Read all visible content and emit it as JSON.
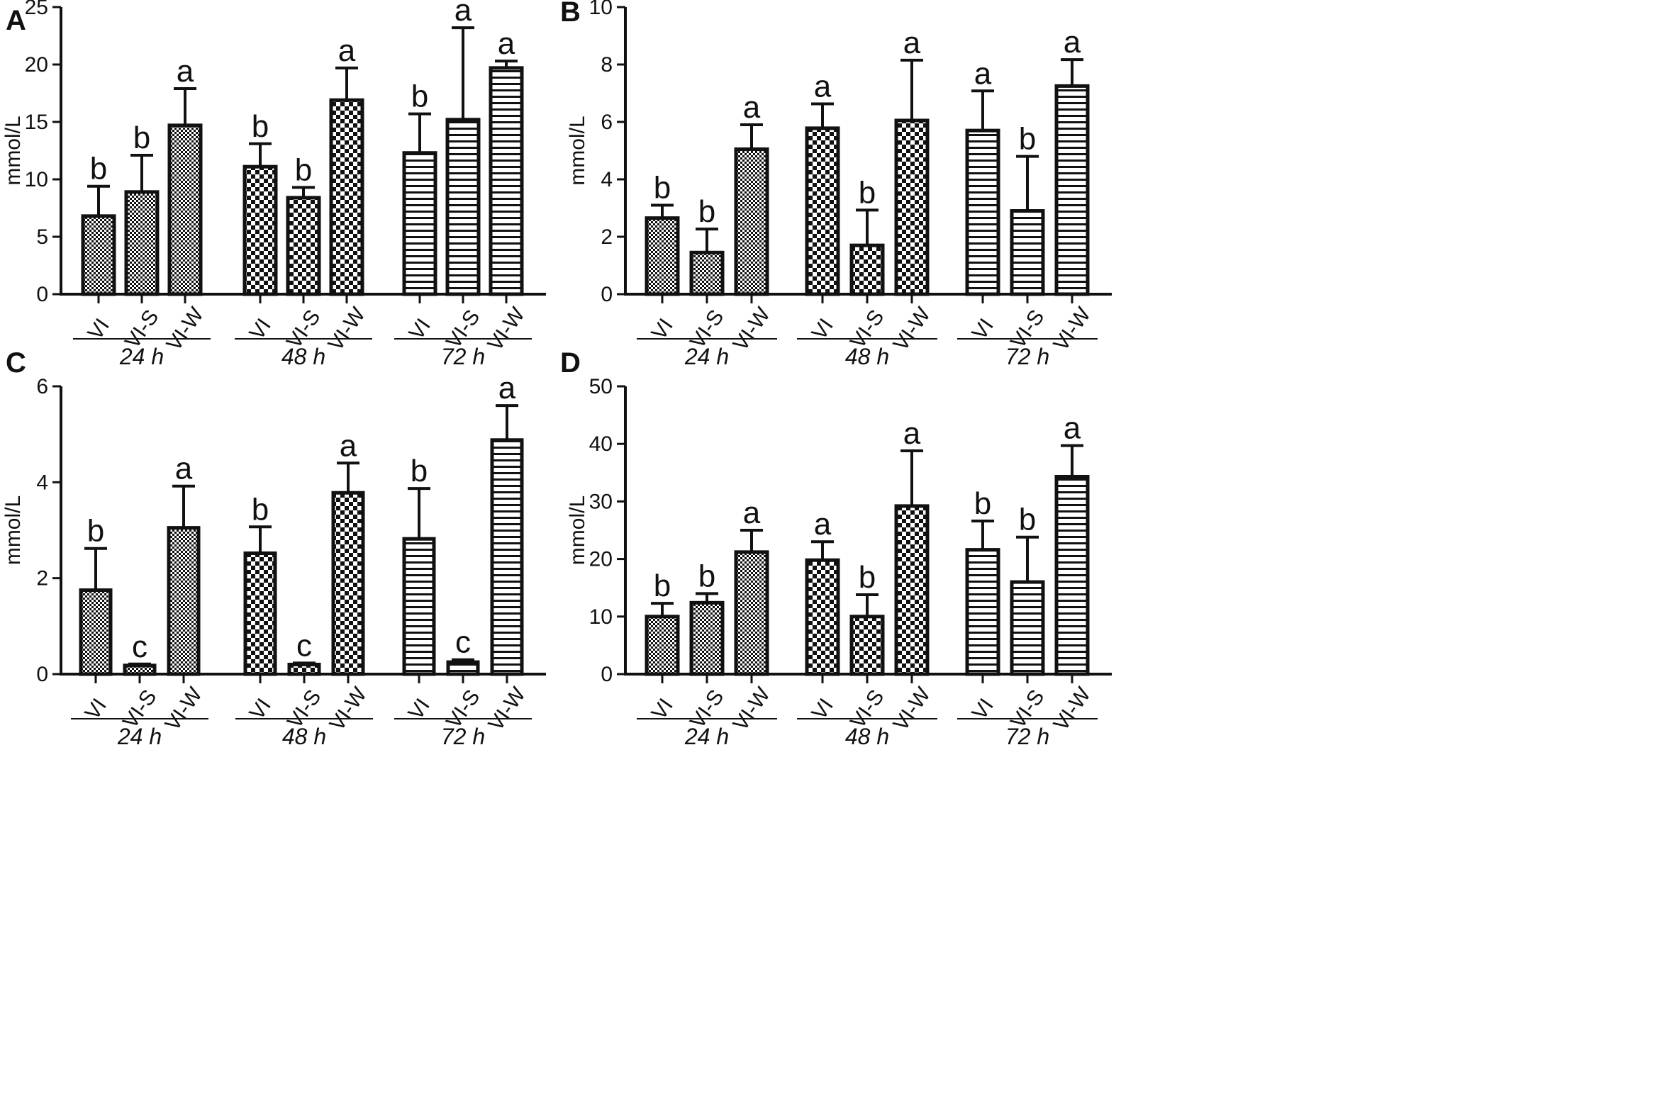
{
  "colors": {
    "ink": "#111111",
    "background": "#ffffff"
  },
  "chart_data": [
    {
      "panel": "A",
      "type": "bar",
      "ylabel": "mmol/L",
      "ylim": [
        0,
        25
      ],
      "yticks": [
        0,
        5,
        10,
        15,
        20,
        25
      ],
      "groups": [
        {
          "label": "24 h",
          "pattern": "dots",
          "bars": [
            {
              "category": "VI",
              "value": 6.8,
              "error": 2.6,
              "sig": "b"
            },
            {
              "category": "VI-S",
              "value": 8.9,
              "error": 3.2,
              "sig": "b"
            },
            {
              "category": "VI-W",
              "value": 14.7,
              "error": 3.2,
              "sig": "a"
            }
          ]
        },
        {
          "label": "48 h",
          "pattern": "checker",
          "bars": [
            {
              "category": "VI",
              "value": 11.1,
              "error": 2.0,
              "sig": "b"
            },
            {
              "category": "VI-S",
              "value": 8.4,
              "error": 0.9,
              "sig": "b"
            },
            {
              "category": "VI-W",
              "value": 16.9,
              "error": 2.8,
              "sig": "a"
            }
          ]
        },
        {
          "label": "72 h",
          "pattern": "stripes",
          "bars": [
            {
              "category": "VI",
              "value": 12.3,
              "error": 3.4,
              "sig": "b"
            },
            {
              "category": "VI-S",
              "value": 15.2,
              "error": 8.0,
              "sig": "a"
            },
            {
              "category": "VI-W",
              "value": 19.7,
              "error": 0.6,
              "sig": "a"
            }
          ]
        }
      ]
    },
    {
      "panel": "B",
      "type": "bar",
      "ylabel": "mmol/L",
      "ylim": [
        0,
        10
      ],
      "yticks": [
        0,
        2,
        4,
        6,
        8,
        10
      ],
      "groups": [
        {
          "label": "24 h",
          "pattern": "dots",
          "bars": [
            {
              "category": "VI",
              "value": 2.65,
              "error": 0.45,
              "sig": "b"
            },
            {
              "category": "VI-S",
              "value": 1.45,
              "error": 0.82,
              "sig": "b"
            },
            {
              "category": "VI-W",
              "value": 5.05,
              "error": 0.85,
              "sig": "a"
            }
          ]
        },
        {
          "label": "48 h",
          "pattern": "checker",
          "bars": [
            {
              "category": "VI",
              "value": 5.78,
              "error": 0.85,
              "sig": "a"
            },
            {
              "category": "VI-S",
              "value": 1.7,
              "error": 1.23,
              "sig": "b"
            },
            {
              "category": "VI-W",
              "value": 6.05,
              "error": 2.1,
              "sig": "a"
            }
          ]
        },
        {
          "label": "72 h",
          "pattern": "stripes",
          "bars": [
            {
              "category": "VI",
              "value": 5.7,
              "error": 1.38,
              "sig": "a"
            },
            {
              "category": "VI-S",
              "value": 2.9,
              "error": 1.9,
              "sig": "b"
            },
            {
              "category": "VI-W",
              "value": 7.25,
              "error": 0.92,
              "sig": "a"
            }
          ]
        }
      ]
    },
    {
      "panel": "C",
      "type": "bar",
      "ylabel": "mmol/L",
      "ylim": [
        0,
        6
      ],
      "yticks": [
        0,
        2,
        4,
        6
      ],
      "groups": [
        {
          "label": "24 h",
          "pattern": "dots",
          "bars": [
            {
              "category": "VI",
              "value": 1.75,
              "error": 0.87,
              "sig": "b"
            },
            {
              "category": "VI-S",
              "value": 0.18,
              "error": 0.03,
              "sig": "c"
            },
            {
              "category": "VI-W",
              "value": 3.05,
              "error": 0.87,
              "sig": "a"
            }
          ]
        },
        {
          "label": "48 h",
          "pattern": "checker",
          "bars": [
            {
              "category": "VI",
              "value": 2.52,
              "error": 0.55,
              "sig": "b"
            },
            {
              "category": "VI-S",
              "value": 0.2,
              "error": 0.03,
              "sig": "c"
            },
            {
              "category": "VI-W",
              "value": 3.78,
              "error": 0.62,
              "sig": "a"
            }
          ]
        },
        {
          "label": "72 h",
          "pattern": "stripes",
          "bars": [
            {
              "category": "VI",
              "value": 2.82,
              "error": 1.05,
              "sig": "b"
            },
            {
              "category": "VI-S",
              "value": 0.25,
              "error": 0.05,
              "sig": "c"
            },
            {
              "category": "VI-W",
              "value": 4.88,
              "error": 0.72,
              "sig": "a"
            }
          ]
        }
      ]
    },
    {
      "panel": "D",
      "type": "bar",
      "ylabel": "mmol/L",
      "ylim": [
        0,
        50
      ],
      "yticks": [
        0,
        10,
        20,
        30,
        40,
        50
      ],
      "groups": [
        {
          "label": "24 h",
          "pattern": "dots",
          "bars": [
            {
              "category": "VI",
              "value": 10.0,
              "error": 2.3,
              "sig": "b"
            },
            {
              "category": "VI-S",
              "value": 12.4,
              "error": 1.6,
              "sig": "b"
            },
            {
              "category": "VI-W",
              "value": 21.2,
              "error": 3.8,
              "sig": "a"
            }
          ]
        },
        {
          "label": "48 h",
          "pattern": "checker",
          "bars": [
            {
              "category": "VI",
              "value": 19.8,
              "error": 3.2,
              "sig": "a"
            },
            {
              "category": "VI-S",
              "value": 10.0,
              "error": 3.8,
              "sig": "b"
            },
            {
              "category": "VI-W",
              "value": 29.2,
              "error": 9.6,
              "sig": "a"
            }
          ]
        },
        {
          "label": "72 h",
          "pattern": "stripes",
          "bars": [
            {
              "category": "VI",
              "value": 21.6,
              "error": 5.0,
              "sig": "b"
            },
            {
              "category": "VI-S",
              "value": 16.0,
              "error": 7.8,
              "sig": "b"
            },
            {
              "category": "VI-W",
              "value": 34.3,
              "error": 5.4,
              "sig": "a"
            }
          ]
        }
      ]
    }
  ]
}
